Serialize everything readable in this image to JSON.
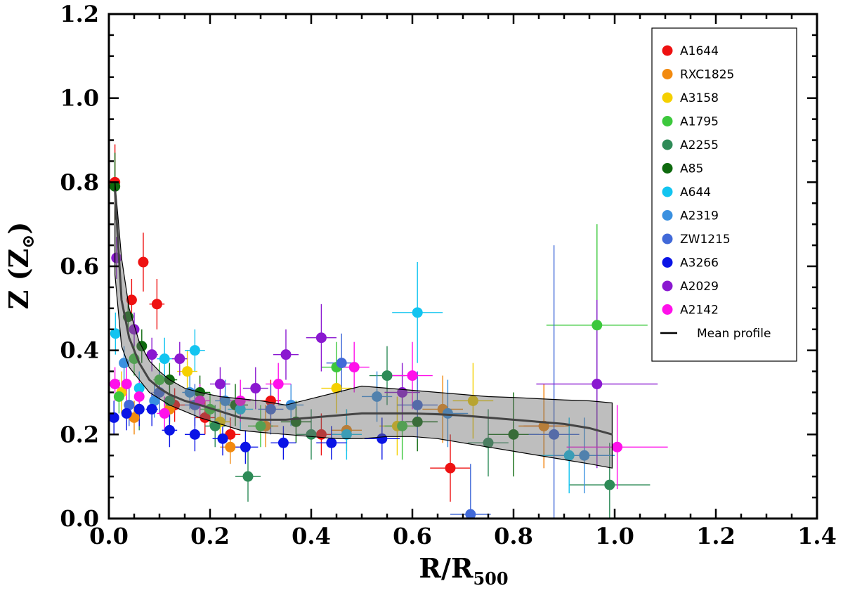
{
  "chart_data": {
    "type": "scatter",
    "title": "",
    "xlabel": "R/R500",
    "xlabel_main": "R/R",
    "xlabel_sub": "500",
    "ylabel": "Z (Z⊙)",
    "ylabel_main": "Z (Z",
    "ylabel_sym": "⊙",
    "ylabel_close": ")",
    "xlim": [
      0.0,
      1.4
    ],
    "ylim": [
      0.0,
      1.2
    ],
    "xticks": [
      "0.0",
      "0.2",
      "0.4",
      "0.6",
      "0.8",
      "1.0",
      "1.2",
      "1.4"
    ],
    "yticks": [
      "0.0",
      "0.2",
      "0.4",
      "0.6",
      "0.8",
      "1.0",
      "1.2"
    ],
    "legend_position": "top-right",
    "series": [
      {
        "name": "A1644",
        "color": "#ee1111",
        "points": [
          [
            0.012,
            0.8,
            0.003,
            0.09
          ],
          [
            0.045,
            0.52,
            0.01,
            0.05
          ],
          [
            0.068,
            0.61,
            0.01,
            0.07
          ],
          [
            0.095,
            0.51,
            0.015,
            0.06
          ],
          [
            0.13,
            0.27,
            0.02,
            0.04
          ],
          [
            0.19,
            0.24,
            0.02,
            0.04
          ],
          [
            0.24,
            0.2,
            0.02,
            0.04
          ],
          [
            0.32,
            0.28,
            0.02,
            0.05
          ],
          [
            0.42,
            0.2,
            0.03,
            0.05
          ],
          [
            0.675,
            0.12,
            0.04,
            0.08
          ],
          [
            0.86,
            0.22,
            0.04,
            0.1
          ]
        ]
      },
      {
        "name": "RXC1825",
        "color": "#f28a0f",
        "points": [
          [
            0.05,
            0.24,
            0.01,
            0.04
          ],
          [
            0.12,
            0.26,
            0.015,
            0.04
          ],
          [
            0.24,
            0.17,
            0.02,
            0.04
          ],
          [
            0.31,
            0.22,
            0.025,
            0.05
          ],
          [
            0.47,
            0.21,
            0.03,
            0.05
          ],
          [
            0.66,
            0.26,
            0.04,
            0.08
          ],
          [
            0.86,
            0.22,
            0.05,
            0.1
          ]
        ]
      },
      {
        "name": "A3158",
        "color": "#f5d000",
        "points": [
          [
            0.025,
            0.3,
            0.01,
            0.05
          ],
          [
            0.155,
            0.35,
            0.02,
            0.05
          ],
          [
            0.22,
            0.23,
            0.02,
            0.05
          ],
          [
            0.45,
            0.31,
            0.03,
            0.06
          ],
          [
            0.57,
            0.22,
            0.035,
            0.07
          ],
          [
            0.72,
            0.28,
            0.04,
            0.09
          ]
        ]
      },
      {
        "name": "A1795",
        "color": "#3cc83c",
        "points": [
          [
            0.02,
            0.29,
            0.005,
            0.04
          ],
          [
            0.05,
            0.38,
            0.01,
            0.04
          ],
          [
            0.1,
            0.33,
            0.012,
            0.04
          ],
          [
            0.2,
            0.26,
            0.02,
            0.04
          ],
          [
            0.3,
            0.22,
            0.025,
            0.05
          ],
          [
            0.45,
            0.36,
            0.03,
            0.06
          ],
          [
            0.58,
            0.22,
            0.035,
            0.08
          ],
          [
            0.965,
            0.46,
            0.1,
            0.24
          ]
        ]
      },
      {
        "name": "A2255",
        "color": "#2e8b57",
        "points": [
          [
            0.06,
            0.26,
            0.01,
            0.05
          ],
          [
            0.12,
            0.28,
            0.015,
            0.05
          ],
          [
            0.21,
            0.22,
            0.02,
            0.05
          ],
          [
            0.275,
            0.1,
            0.025,
            0.06
          ],
          [
            0.4,
            0.2,
            0.03,
            0.06
          ],
          [
            0.55,
            0.34,
            0.035,
            0.07
          ],
          [
            0.75,
            0.18,
            0.04,
            0.08
          ],
          [
            0.99,
            0.08,
            0.08,
            0.1
          ]
        ]
      },
      {
        "name": "A85",
        "color": "#0e6a0e",
        "points": [
          [
            0.012,
            0.79,
            0.003,
            0.08
          ],
          [
            0.038,
            0.48,
            0.006,
            0.04
          ],
          [
            0.065,
            0.41,
            0.01,
            0.04
          ],
          [
            0.12,
            0.33,
            0.015,
            0.04
          ],
          [
            0.18,
            0.3,
            0.02,
            0.04
          ],
          [
            0.25,
            0.27,
            0.025,
            0.05
          ],
          [
            0.37,
            0.23,
            0.03,
            0.05
          ],
          [
            0.61,
            0.23,
            0.04,
            0.07
          ],
          [
            0.8,
            0.2,
            0.05,
            0.1
          ]
        ]
      },
      {
        "name": "A644",
        "color": "#12c4f0",
        "points": [
          [
            0.013,
            0.44,
            0.004,
            0.05
          ],
          [
            0.06,
            0.31,
            0.01,
            0.04
          ],
          [
            0.11,
            0.38,
            0.015,
            0.05
          ],
          [
            0.17,
            0.4,
            0.02,
            0.05
          ],
          [
            0.26,
            0.26,
            0.025,
            0.05
          ],
          [
            0.47,
            0.2,
            0.03,
            0.06
          ],
          [
            0.61,
            0.49,
            0.05,
            0.12
          ],
          [
            0.91,
            0.15,
            0.06,
            0.09
          ]
        ]
      },
      {
        "name": "A2319",
        "color": "#3a90e0",
        "points": [
          [
            0.03,
            0.37,
            0.006,
            0.04
          ],
          [
            0.09,
            0.28,
            0.01,
            0.04
          ],
          [
            0.16,
            0.3,
            0.015,
            0.04
          ],
          [
            0.23,
            0.28,
            0.02,
            0.05
          ],
          [
            0.36,
            0.27,
            0.025,
            0.05
          ],
          [
            0.53,
            0.29,
            0.03,
            0.06
          ],
          [
            0.67,
            0.25,
            0.04,
            0.08
          ],
          [
            0.94,
            0.15,
            0.06,
            0.09
          ]
        ]
      },
      {
        "name": "ZW1215",
        "color": "#4169d8",
        "points": [
          [
            0.04,
            0.27,
            0.008,
            0.05
          ],
          [
            0.1,
            0.3,
            0.012,
            0.05
          ],
          [
            0.17,
            0.27,
            0.02,
            0.05
          ],
          [
            0.32,
            0.26,
            0.025,
            0.06
          ],
          [
            0.46,
            0.37,
            0.03,
            0.07
          ],
          [
            0.61,
            0.27,
            0.04,
            0.08
          ],
          [
            0.715,
            0.01,
            0.04,
            0.12
          ],
          [
            0.88,
            0.2,
            0.05,
            0.45
          ]
        ]
      },
      {
        "name": "A3266",
        "color": "#0a14e6",
        "points": [
          [
            0.01,
            0.24,
            0.004,
            0.04
          ],
          [
            0.035,
            0.25,
            0.006,
            0.04
          ],
          [
            0.06,
            0.26,
            0.01,
            0.04
          ],
          [
            0.085,
            0.26,
            0.012,
            0.04
          ],
          [
            0.12,
            0.21,
            0.015,
            0.04
          ],
          [
            0.17,
            0.2,
            0.02,
            0.04
          ],
          [
            0.225,
            0.19,
            0.02,
            0.04
          ],
          [
            0.27,
            0.17,
            0.025,
            0.04
          ],
          [
            0.345,
            0.18,
            0.025,
            0.04
          ],
          [
            0.44,
            0.18,
            0.03,
            0.04
          ],
          [
            0.54,
            0.19,
            0.035,
            0.05
          ]
        ]
      },
      {
        "name": "A2029",
        "color": "#8a18d0",
        "points": [
          [
            0.015,
            0.62,
            0.004,
            0.05
          ],
          [
            0.05,
            0.45,
            0.01,
            0.04
          ],
          [
            0.085,
            0.39,
            0.012,
            0.04
          ],
          [
            0.14,
            0.38,
            0.015,
            0.04
          ],
          [
            0.22,
            0.32,
            0.02,
            0.04
          ],
          [
            0.29,
            0.31,
            0.025,
            0.05
          ],
          [
            0.35,
            0.39,
            0.025,
            0.06
          ],
          [
            0.42,
            0.43,
            0.03,
            0.08
          ],
          [
            0.58,
            0.3,
            0.035,
            0.07
          ],
          [
            0.965,
            0.32,
            0.12,
            0.2
          ]
        ]
      },
      {
        "name": "A2142",
        "color": "#ff10ea",
        "points": [
          [
            0.012,
            0.32,
            0.004,
            0.04
          ],
          [
            0.035,
            0.32,
            0.006,
            0.04
          ],
          [
            0.06,
            0.29,
            0.01,
            0.04
          ],
          [
            0.11,
            0.25,
            0.015,
            0.04
          ],
          [
            0.18,
            0.28,
            0.02,
            0.04
          ],
          [
            0.26,
            0.28,
            0.02,
            0.05
          ],
          [
            0.335,
            0.32,
            0.025,
            0.05
          ],
          [
            0.485,
            0.36,
            0.03,
            0.06
          ],
          [
            0.6,
            0.34,
            0.04,
            0.08
          ],
          [
            1.005,
            0.17,
            0.1,
            0.1
          ]
        ]
      }
    ],
    "mean_profile": {
      "name": "Mean profile",
      "x": [
        0.012,
        0.025,
        0.04,
        0.06,
        0.08,
        0.1,
        0.12,
        0.15,
        0.18,
        0.22,
        0.26,
        0.3,
        0.35,
        0.4,
        0.45,
        0.5,
        0.55,
        0.6,
        0.65,
        0.7,
        0.75,
        0.8,
        0.85,
        0.9,
        0.95,
        0.995
      ],
      "y": [
        0.78,
        0.52,
        0.43,
        0.37,
        0.33,
        0.31,
        0.295,
        0.28,
        0.27,
        0.255,
        0.24,
        0.235,
        0.235,
        0.24,
        0.245,
        0.25,
        0.25,
        0.25,
        0.248,
        0.245,
        0.24,
        0.235,
        0.23,
        0.225,
        0.215,
        0.2
      ],
      "upper": [
        0.8,
        0.62,
        0.5,
        0.42,
        0.375,
        0.35,
        0.33,
        0.31,
        0.3,
        0.29,
        0.285,
        0.28,
        0.27,
        0.285,
        0.3,
        0.315,
        0.31,
        0.305,
        0.3,
        0.295,
        0.29,
        0.288,
        0.285,
        0.282,
        0.28,
        0.275
      ],
      "lower": [
        0.58,
        0.41,
        0.36,
        0.33,
        0.3,
        0.285,
        0.27,
        0.255,
        0.24,
        0.225,
        0.21,
        0.205,
        0.2,
        0.195,
        0.19,
        0.19,
        0.195,
        0.195,
        0.19,
        0.18,
        0.17,
        0.16,
        0.15,
        0.14,
        0.13,
        0.12
      ]
    }
  }
}
